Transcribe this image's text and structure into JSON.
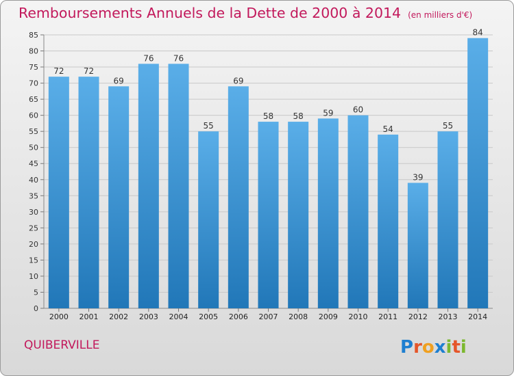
{
  "header": {
    "title": "Remboursements Annuels de la Dette de 2000 à 2014",
    "subtitle": "(en milliers d'€)"
  },
  "commune": "QUIBERVILLE",
  "logo": {
    "text": "Proxiti",
    "icon": "proxiti-logo"
  },
  "colors": {
    "title": "#c2185b",
    "bar_top": "#5aaee8",
    "bar_bottom": "#2177b8",
    "grid": "#c8c8c8"
  },
  "chart_data": {
    "type": "bar",
    "categories": [
      "2000",
      "2001",
      "2002",
      "2003",
      "2004",
      "2005",
      "2006",
      "2007",
      "2008",
      "2009",
      "2010",
      "2011",
      "2012",
      "2013",
      "2014"
    ],
    "values": [
      72,
      72,
      69,
      76,
      76,
      55,
      69,
      58,
      58,
      59,
      60,
      54,
      39,
      55,
      84
    ],
    "title": "Remboursements Annuels de la Dette de 2000 à 2014",
    "xlabel": "",
    "ylabel": "",
    "ylim": [
      0,
      85
    ],
    "yticks": [
      0,
      5,
      10,
      15,
      20,
      25,
      30,
      35,
      40,
      45,
      50,
      55,
      60,
      65,
      70,
      75,
      80,
      85
    ],
    "grid": true,
    "data_labels": true
  }
}
